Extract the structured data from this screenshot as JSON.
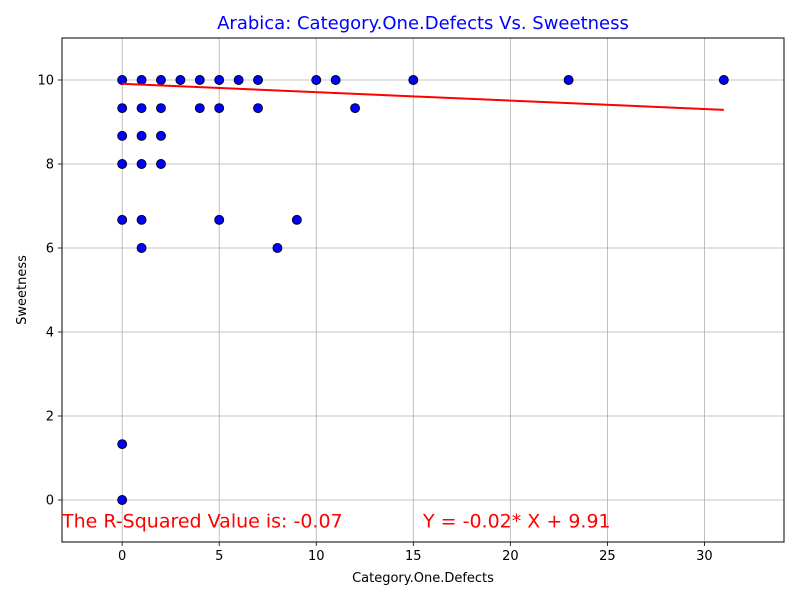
{
  "chart_data": {
    "type": "scatter",
    "title": "Arabica: Category.One.Defects Vs. Sweetness",
    "xlabel": "Category.One.Defects",
    "ylabel": "Sweetness",
    "xlim": [
      -3.1,
      34.1
    ],
    "ylim": [
      -1,
      11
    ],
    "xticks": [
      0,
      5,
      10,
      15,
      20,
      25,
      30
    ],
    "yticks": [
      0,
      2,
      4,
      6,
      8,
      10
    ],
    "grid": true,
    "colors": {
      "title": "#0000ff",
      "points": "#0000ff",
      "point_edge": "#000000",
      "regression": "#ff0000",
      "annotation": "#ff0000",
      "grid": "#b0b0b0"
    },
    "points": [
      [
        0,
        10
      ],
      [
        0,
        9.33
      ],
      [
        0,
        8.67
      ],
      [
        0,
        8
      ],
      [
        0,
        6.67
      ],
      [
        0,
        1.33
      ],
      [
        0,
        0
      ],
      [
        1,
        10
      ],
      [
        1,
        9.33
      ],
      [
        1,
        8.67
      ],
      [
        1,
        8
      ],
      [
        1,
        6.67
      ],
      [
        1,
        6
      ],
      [
        2,
        10
      ],
      [
        2,
        9.33
      ],
      [
        2,
        8.67
      ],
      [
        2,
        8
      ],
      [
        3,
        10
      ],
      [
        4,
        10
      ],
      [
        4,
        9.33
      ],
      [
        5,
        10
      ],
      [
        5,
        9.33
      ],
      [
        5,
        6.67
      ],
      [
        6,
        10
      ],
      [
        7,
        10
      ],
      [
        7,
        9.33
      ],
      [
        8,
        6
      ],
      [
        9,
        6.67
      ],
      [
        10,
        10
      ],
      [
        11,
        10
      ],
      [
        12,
        9.33
      ],
      [
        15,
        10
      ],
      [
        23,
        10
      ],
      [
        31,
        10
      ]
    ],
    "regression": {
      "slope": -0.02,
      "intercept": 9.91,
      "x_range": [
        0,
        31
      ]
    },
    "annotations": [
      {
        "text": "The R-Squared Value is: -0.07",
        "x": -3.1,
        "y": -0.65
      },
      {
        "text": "Y = -0.02* X + 9.91",
        "x": 15.5,
        "y": -0.65
      }
    ]
  }
}
